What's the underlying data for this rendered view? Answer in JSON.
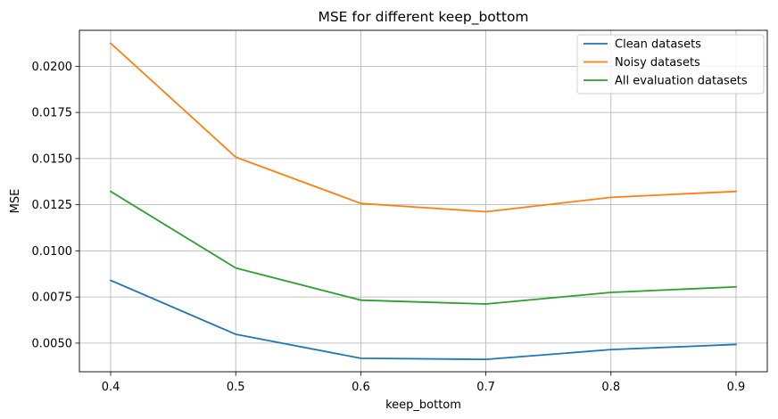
{
  "chart_data": {
    "type": "line",
    "title": "MSE for different keep_bottom",
    "xlabel": "keep_bottom",
    "ylabel": "MSE",
    "x": [
      0.4,
      0.5,
      0.6,
      0.7,
      0.8,
      0.9
    ],
    "x_tick_labels": [
      "0.4",
      "0.5",
      "0.6",
      "0.7",
      "0.8",
      "0.9"
    ],
    "xlim": [
      0.375,
      0.925
    ],
    "ylim": [
      0.00345,
      0.02195
    ],
    "y_ticks": [
      0.005,
      0.0075,
      0.01,
      0.0125,
      0.015,
      0.0175,
      0.02
    ],
    "y_tick_labels": [
      "0.0050",
      "0.0075",
      "0.0100",
      "0.0125",
      "0.0150",
      "0.0175",
      "0.0200"
    ],
    "grid": true,
    "legend_position": "top-right",
    "series": [
      {
        "name": "Clean datasets",
        "color": "#1f77b4",
        "values": [
          0.0084,
          0.00548,
          0.00418,
          0.00412,
          0.00465,
          0.00493
        ]
      },
      {
        "name": "Noisy datasets",
        "color": "#ff7f0e",
        "values": [
          0.02125,
          0.01508,
          0.01257,
          0.01212,
          0.0129,
          0.01322
        ]
      },
      {
        "name": "All evaluation datasets",
        "color": "#2ca02c",
        "values": [
          0.01322,
          0.00907,
          0.00733,
          0.00712,
          0.00775,
          0.00805
        ]
      }
    ]
  }
}
